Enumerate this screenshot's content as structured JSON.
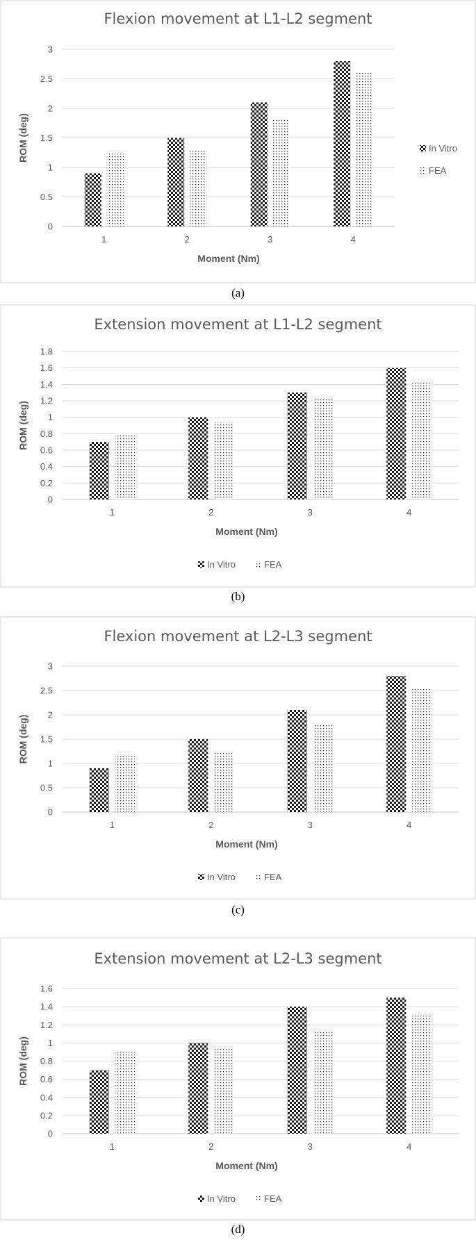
{
  "chart_data": [
    {
      "type": "bar",
      "panel": "(a)",
      "title": "Flexion movement at L1-L2 segment",
      "xlabel": "Moment (Nm)",
      "ylabel": "ROM (deg)",
      "categories": [
        "1",
        "2",
        "3",
        "4"
      ],
      "yticks": [
        "0",
        "0.5",
        "1",
        "1.5",
        "2",
        "2.5",
        "3"
      ],
      "ylim": [
        0,
        3
      ],
      "legend": "right",
      "grid": true,
      "series": [
        {
          "name": "In Vitro",
          "pattern": "checker",
          "values": [
            0.9,
            1.5,
            2.1,
            2.8
          ]
        },
        {
          "name": "FEA",
          "pattern": "dots",
          "values": [
            1.23,
            1.3,
            1.83,
            2.6
          ]
        }
      ]
    },
    {
      "type": "bar",
      "panel": "(b)",
      "title": "Extension movement at L1-L2 segment",
      "xlabel": "Moment (Nm)",
      "ylabel": "ROM (deg)",
      "categories": [
        "1",
        "2",
        "3",
        "4"
      ],
      "yticks": [
        "0",
        "0.2",
        "0.4",
        "0.6",
        "0.8",
        "1",
        "1.2",
        "1.4",
        "1.6",
        "1.8"
      ],
      "ylim": [
        0,
        1.8
      ],
      "legend": "bottom",
      "grid": true,
      "series": [
        {
          "name": "In Vitro",
          "pattern": "checker",
          "values": [
            0.7,
            1.0,
            1.3,
            1.6
          ]
        },
        {
          "name": "FEA",
          "pattern": "dots",
          "values": [
            0.8,
            0.94,
            1.23,
            1.42
          ]
        }
      ]
    },
    {
      "type": "bar",
      "panel": "(c)",
      "title": "Flexion movement at L2-L3 segment",
      "xlabel": "Moment (Nm)",
      "ylabel": "ROM (deg)",
      "categories": [
        "1",
        "2",
        "3",
        "4"
      ],
      "yticks": [
        "0",
        "0.5",
        "1",
        "1.5",
        "2",
        "2.5",
        "3"
      ],
      "ylim": [
        0,
        3
      ],
      "legend": "bottom",
      "grid": true,
      "series": [
        {
          "name": "In Vitro",
          "pattern": "checker",
          "values": [
            0.9,
            1.5,
            2.1,
            2.8
          ]
        },
        {
          "name": "FEA",
          "pattern": "dots",
          "values": [
            1.2,
            1.25,
            1.8,
            2.56
          ]
        }
      ]
    },
    {
      "type": "bar",
      "panel": "(d)",
      "title": "Extension movement at L2-L3 segment",
      "xlabel": "Moment (Nm)",
      "ylabel": "ROM (deg)",
      "categories": [
        "1",
        "2",
        "3",
        "4"
      ],
      "yticks": [
        "0",
        "0.2",
        "0.4",
        "0.6",
        "0.8",
        "1",
        "1.2",
        "1.4",
        "1.6"
      ],
      "ylim": [
        0,
        1.6
      ],
      "legend": "bottom",
      "grid": true,
      "series": [
        {
          "name": "In Vitro",
          "pattern": "checker",
          "values": [
            0.7,
            1.0,
            1.4,
            1.5
          ]
        },
        {
          "name": "FEA",
          "pattern": "dots",
          "values": [
            0.92,
            0.95,
            1.12,
            1.3
          ]
        }
      ]
    }
  ]
}
